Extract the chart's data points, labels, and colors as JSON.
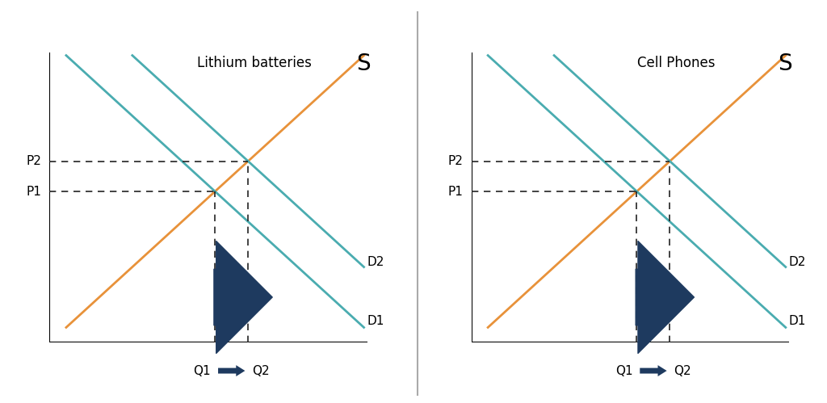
{
  "panel1_title": "Lithium batteries",
  "panel2_title": "Cell Phones",
  "s_label": "S",
  "d1_label": "D1",
  "d2_label": "D2",
  "p1_label": "P1",
  "p2_label": "P2",
  "q1_label": "Q1",
  "q2_label": "Q2",
  "supply_color": "#E8923A",
  "demand_color": "#4AACB0",
  "arrow_color": "#1E3A5F",
  "dashed_color": "#222222",
  "bg_color": "#FFFFFF",
  "divider_color": "#AAAAAA",
  "xlim": [
    0,
    10
  ],
  "ylim": [
    0,
    10
  ],
  "panel1": {
    "supply": {
      "x": [
        0.5,
        9.5
      ],
      "y": [
        0.5,
        9.5
      ]
    },
    "demand1": {
      "x": [
        0.5,
        9.5
      ],
      "y": [
        9.5,
        0.5
      ]
    },
    "demand2": {
      "x": [
        2.5,
        9.5
      ],
      "y": [
        9.5,
        2.5
      ]
    },
    "eq1_x": 5.0,
    "eq1_y": 5.0,
    "eq2_x": 6.0,
    "eq2_y": 6.0,
    "p1": 5.0,
    "p2": 6.0,
    "q1": 5.0,
    "q2": 6.0
  },
  "panel2": {
    "supply": {
      "x": [
        0.5,
        9.5
      ],
      "y": [
        0.5,
        9.5
      ]
    },
    "demand1": {
      "x": [
        0.5,
        9.5
      ],
      "y": [
        9.5,
        0.5
      ]
    },
    "demand2": {
      "x": [
        2.5,
        9.5
      ],
      "y": [
        9.5,
        2.5
      ]
    },
    "eq1_x": 5.0,
    "eq1_y": 5.0,
    "eq2_x": 6.0,
    "eq2_y": 6.0,
    "p1": 5.0,
    "p2": 6.0,
    "q1": 5.0,
    "q2": 6.0
  },
  "fontsize_title": 12,
  "fontsize_labels": 11,
  "fontsize_s": 20,
  "fontsize_pq": 11
}
